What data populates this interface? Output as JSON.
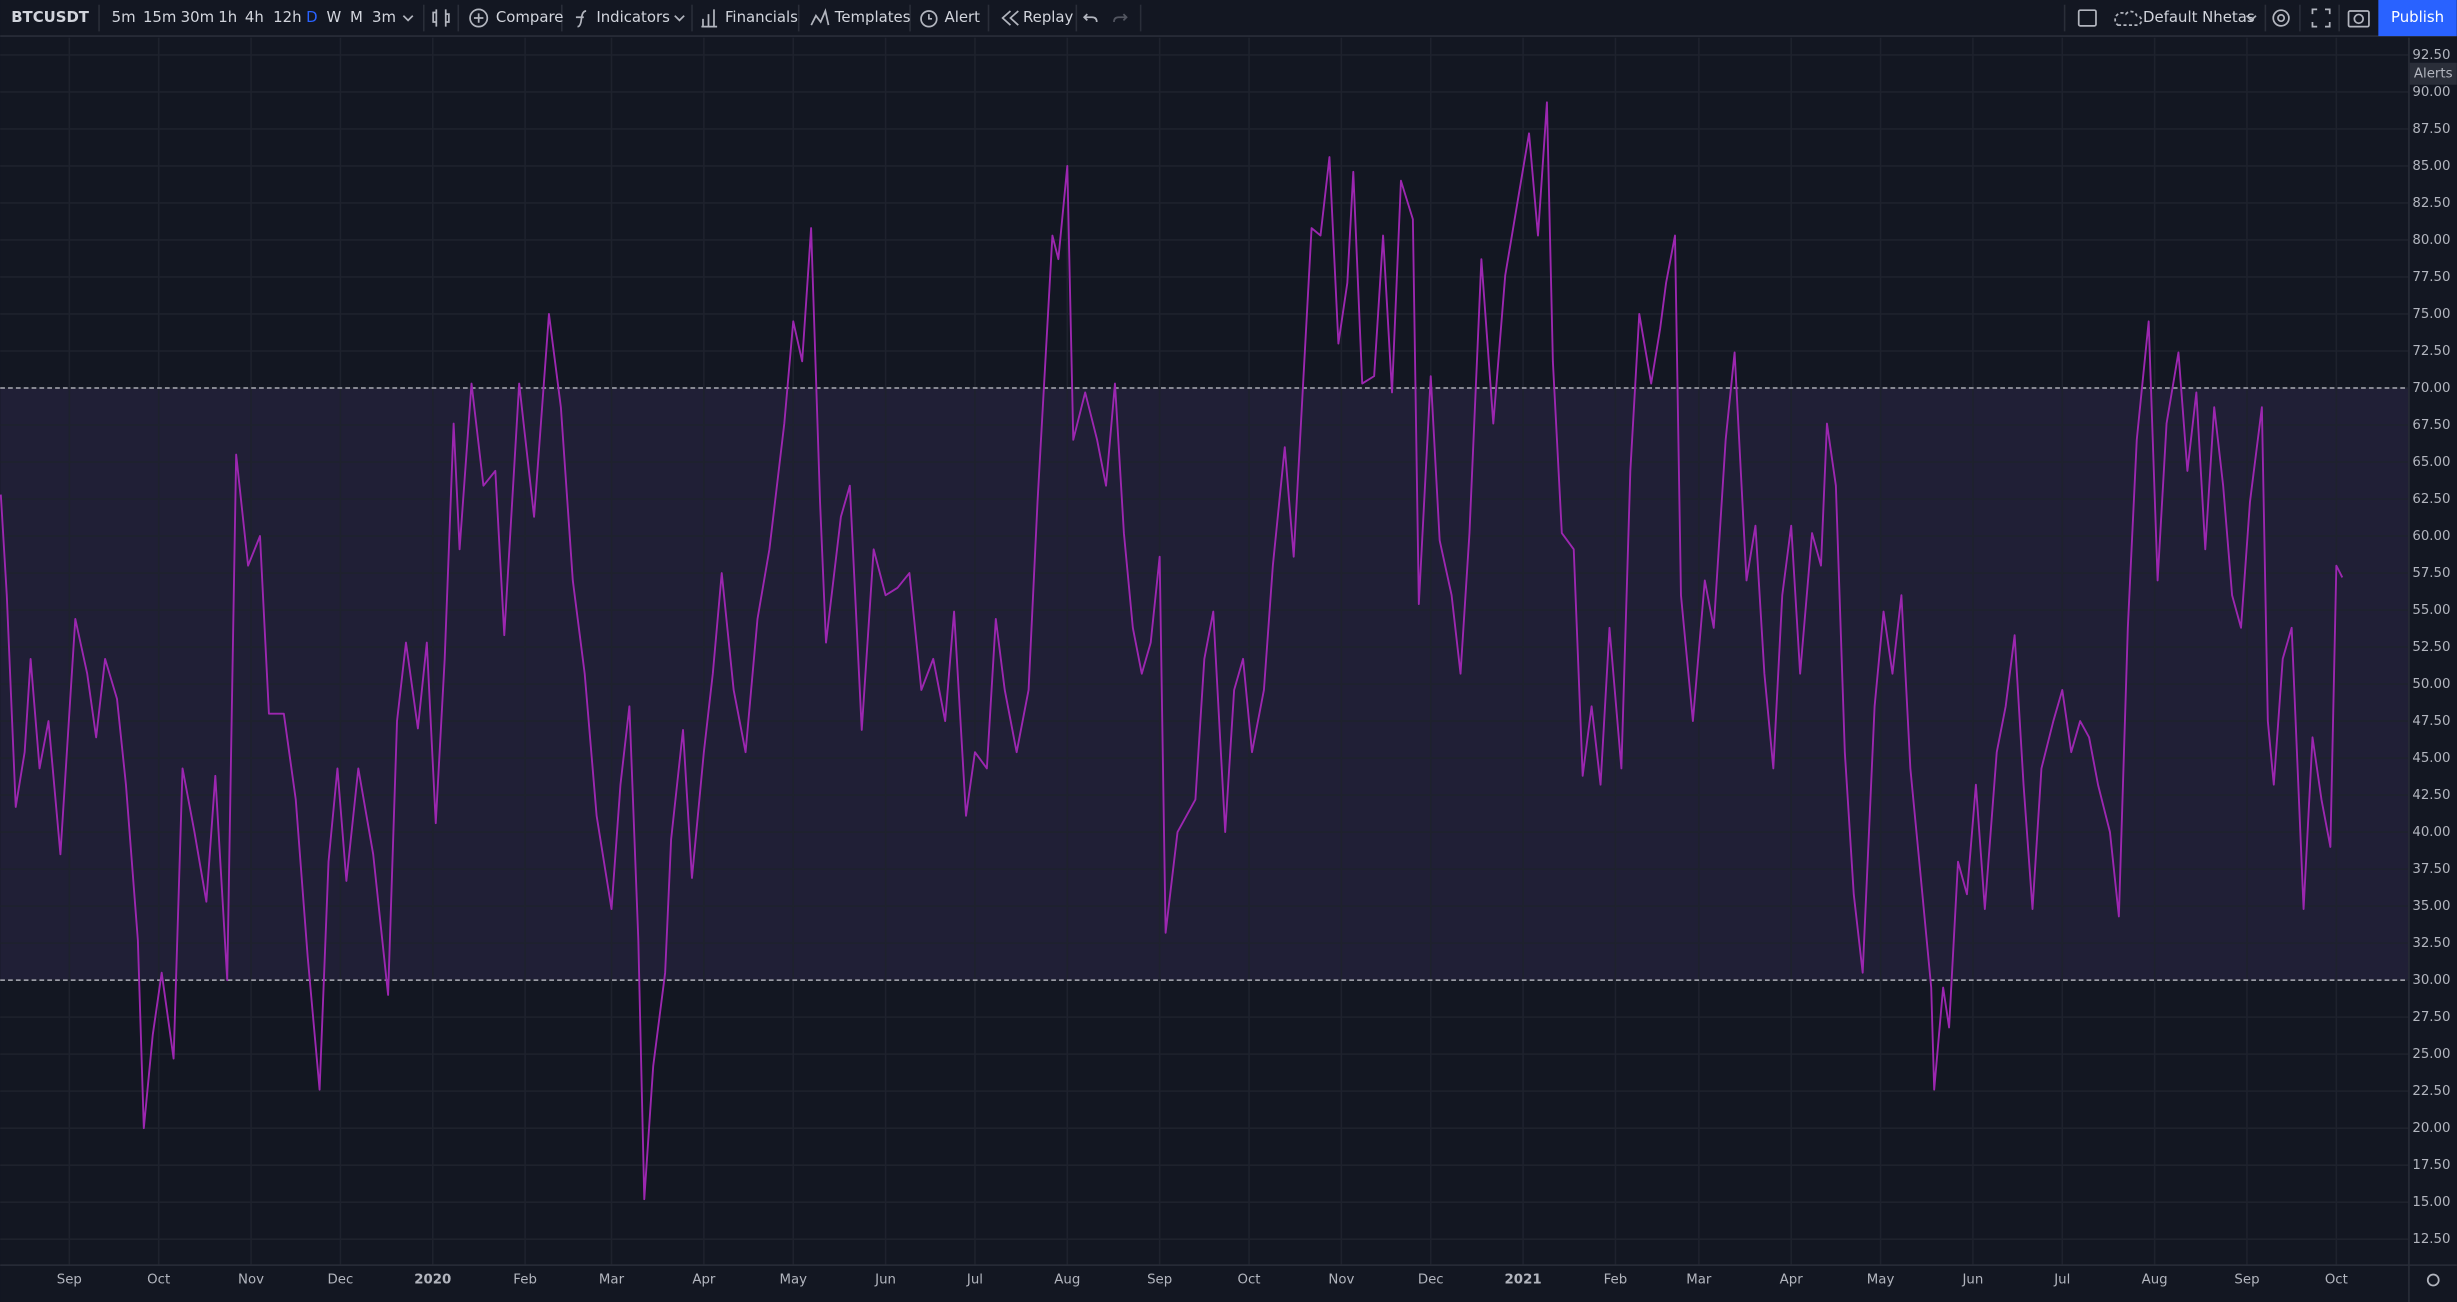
{
  "toolbar": {
    "symbol": "BTCUSDT",
    "intervals": [
      "5m",
      "15m",
      "30m",
      "1h",
      "4h",
      "12h",
      "D",
      "W",
      "M",
      "3m"
    ],
    "active_interval": 6,
    "buttons": [
      "Compare",
      "Indicators",
      "Financials",
      "Templates",
      "Alert",
      "Replay"
    ],
    "layout_name": "Default Nhetas",
    "publish": "Publish"
  },
  "chart_data": {
    "type": "line",
    "axis_tag": "Alerts",
    "color": "#9c27b0",
    "band_color": "#7e57c2",
    "hlines": [
      70,
      30
    ],
    "grid": true,
    "x": [
      -23,
      -21,
      -18,
      -15,
      -13,
      -10,
      -7,
      -3,
      2,
      6,
      9,
      12,
      16,
      19,
      23,
      25,
      28,
      31,
      35,
      38,
      42,
      46,
      49,
      53,
      56,
      60,
      64,
      67,
      72,
      76,
      80,
      84,
      87,
      90,
      93,
      97,
      102,
      107,
      110,
      113,
      117,
      120,
      123,
      126,
      129,
      131,
      135,
      139,
      143,
      146,
      151,
      156,
      161,
      165,
      169,
      173,
      177,
      182,
      185,
      188,
      191,
      193,
      196,
      200,
      202,
      206,
      209,
      213,
      216,
      219,
      223,
      227,
      231,
      235,
      240,
      243,
      246,
      249,
      252,
      254,
      259,
      262,
      266,
      270,
      274,
      278,
      282,
      286,
      290,
      294,
      297,
      301,
      304,
      308,
      311,
      314,
      318,
      322,
      325,
      330,
      332,
      335,
      337,
      341,
      345,
      348,
      351,
      354,
      357,
      360,
      363,
      366,
      368,
      372,
      375,
      378,
      381,
      384,
      388,
      391,
      394,
      397,
      401,
      404,
      408,
      411,
      414,
      417,
      420,
      423,
      426,
      429,
      431,
      434,
      438,
      441,
      444,
      447,
      451,
      453,
      457,
      460,
      464,
      467,
      470,
      474,
      478,
      482,
      486,
      490,
      493,
      496,
      498,
      501,
      505,
      508,
      511,
      514,
      517,
      521,
      524,
      527,
      531,
      534,
      536,
      539,
      541,
      545,
      549,
      552,
      556,
      559,
      563,
      566,
      569,
      572,
      575,
      578,
      581,
      585,
      588,
      590,
      593,
      596,
      599,
      602,
      606,
      609,
      612,
      615,
      618,
      621,
      625,
      626,
      629,
      631,
      634,
      637,
      640,
      643,
      647,
      650,
      653,
      656,
      659,
      662,
      666,
      669,
      672,
      675,
      678,
      681,
      685,
      688,
      691,
      694,
      698,
      701,
      704,
      708,
      711,
      714,
      717,
      720,
      723,
      726,
      729,
      732,
      736,
      738,
      740,
      743,
      746,
      750,
      753,
      756,
      759,
      761,
      763
    ],
    "values": [
      62.8,
      56,
      41.7,
      45.4,
      51.7,
      44.3,
      47.5,
      38.5,
      54.4,
      50.7,
      46.4,
      51.7,
      49,
      43.2,
      32.7,
      20,
      26.3,
      30.5,
      24.7,
      44.3,
      40,
      35.3,
      43.8,
      30,
      65.5,
      58,
      60,
      48,
      48,
      42.2,
      31.6,
      22.6,
      38,
      44.3,
      36.7,
      44.3,
      38.5,
      29,
      47.5,
      52.8,
      47,
      52.8,
      40.6,
      51.7,
      67.6,
      59.1,
      70.3,
      63.4,
      64.4,
      53.3,
      70.3,
      61.3,
      75,
      68.7,
      57,
      50.7,
      41.1,
      34.8,
      43.2,
      48.5,
      32.7,
      15.2,
      24.2,
      30.5,
      39.5,
      46.9,
      36.9,
      45.4,
      50.7,
      57.5,
      49.6,
      45.4,
      54.4,
      59.1,
      67.6,
      74.5,
      71.8,
      80.8,
      62.3,
      52.8,
      61.3,
      63.4,
      46.9,
      59.1,
      56,
      56.5,
      57.5,
      49.6,
      51.7,
      47.5,
      54.9,
      41.1,
      45.4,
      44.3,
      54.4,
      49.6,
      45.4,
      49.6,
      62.3,
      80.3,
      78.7,
      85,
      66.5,
      69.7,
      66.5,
      63.4,
      70.3,
      60.2,
      53.8,
      50.7,
      52.8,
      58.6,
      33.2,
      40,
      41.1,
      42.2,
      51.7,
      54.9,
      40,
      49.6,
      51.7,
      45.4,
      49.6,
      58,
      66,
      58.6,
      69.7,
      80.8,
      80.3,
      85.6,
      73,
      77.1,
      84.6,
      70.3,
      70.8,
      80.3,
      69.7,
      84,
      81.4,
      55.4,
      70.8,
      59.7,
      56,
      50.7,
      60.2,
      78.7,
      67.6,
      77.6,
      82.4,
      87.2,
      80.3,
      89.3,
      71.8,
      60.2,
      59.1,
      43.8,
      48.5,
      43.2,
      53.8,
      44.3,
      64.4,
      75,
      70.3,
      74,
      77.1,
      80.3,
      56,
      47.5,
      57,
      53.8,
      66.5,
      72.4,
      57,
      60.7,
      50.7,
      44.3,
      56,
      60.7,
      50.7,
      60.2,
      58,
      67.6,
      63.4,
      45.4,
      35.8,
      30.5,
      48.5,
      54.9,
      50.7,
      56,
      44.3,
      38,
      29.5,
      22.6,
      29.5,
      26.8,
      38,
      35.8,
      43.2,
      34.8,
      45.4,
      48.5,
      53.3,
      43.2,
      34.8,
      44.3,
      47.5,
      49.6,
      45.4,
      47.5,
      46.4,
      43.2,
      40,
      34.3,
      53.8,
      66.5,
      74.5,
      57,
      67.6,
      72.4,
      64.4,
      69.7,
      59.1,
      68.7,
      63.4,
      56,
      53.8,
      62.3,
      68.7,
      47.5,
      43.2,
      51.7,
      53.8,
      34.8,
      46.4,
      42.2,
      39,
      58,
      57.2
    ],
    "xlim": [
      -23.2,
      785.1
    ],
    "xticks": [
      {
        "value": 0,
        "label": "Sep"
      },
      {
        "value": 30,
        "label": "Oct"
      },
      {
        "value": 61,
        "label": "Nov"
      },
      {
        "value": 91,
        "label": "Dec"
      },
      {
        "value": 122,
        "label": "2020"
      },
      {
        "value": 153,
        "label": "Feb"
      },
      {
        "value": 182,
        "label": "Mar"
      },
      {
        "value": 213,
        "label": "Apr"
      },
      {
        "value": 243,
        "label": "May"
      },
      {
        "value": 274,
        "label": "Jun"
      },
      {
        "value": 304,
        "label": "Jul"
      },
      {
        "value": 335,
        "label": "Aug"
      },
      {
        "value": 366,
        "label": "Sep"
      },
      {
        "value": 396,
        "label": "Oct"
      },
      {
        "value": 427,
        "label": "Nov"
      },
      {
        "value": 457,
        "label": "Dec"
      },
      {
        "value": 488,
        "label": "2021"
      },
      {
        "value": 519,
        "label": "Feb"
      },
      {
        "value": 547,
        "label": "Mar"
      },
      {
        "value": 578,
        "label": "Apr"
      },
      {
        "value": 608,
        "label": "May"
      },
      {
        "value": 639,
        "label": "Jun"
      },
      {
        "value": 669,
        "label": "Jul"
      },
      {
        "value": 700,
        "label": "Aug"
      },
      {
        "value": 731,
        "label": "Sep"
      },
      {
        "value": 761,
        "label": "Oct"
      }
    ],
    "ylim": [
      10.8,
      93.56
    ],
    "yticks": [
      {
        "value": 12.5,
        "label": "12.50"
      },
      {
        "value": 15,
        "label": "15.00"
      },
      {
        "value": 17.5,
        "label": "17.50"
      },
      {
        "value": 20,
        "label": "20.00"
      },
      {
        "value": 22.5,
        "label": "22.50"
      },
      {
        "value": 25,
        "label": "25.00"
      },
      {
        "value": 27.5,
        "label": "27.50"
      },
      {
        "value": 30,
        "label": "30.00"
      },
      {
        "value": 32.5,
        "label": "32.50"
      },
      {
        "value": 35,
        "label": "35.00"
      },
      {
        "value": 37.5,
        "label": "37.50"
      },
      {
        "value": 40,
        "label": "40.00"
      },
      {
        "value": 42.5,
        "label": "42.50"
      },
      {
        "value": 45,
        "label": "45.00"
      },
      {
        "value": 47.5,
        "label": "47.50"
      },
      {
        "value": 50,
        "label": "50.00"
      },
      {
        "value": 52.5,
        "label": "52.50"
      },
      {
        "value": 55,
        "label": "55.00"
      },
      {
        "value": 57.5,
        "label": "57.50"
      },
      {
        "value": 60,
        "label": "60.00"
      },
      {
        "value": 62.5,
        "label": "62.50"
      },
      {
        "value": 65,
        "label": "65.00"
      },
      {
        "value": 67.5,
        "label": "67.50"
      },
      {
        "value": 70,
        "label": "70.00"
      },
      {
        "value": 72.5,
        "label": "72.50"
      },
      {
        "value": 75,
        "label": "75.00"
      },
      {
        "value": 77.5,
        "label": "77.50"
      },
      {
        "value": 80,
        "label": "80.00"
      },
      {
        "value": 82.5,
        "label": "82.50"
      },
      {
        "value": 85,
        "label": "85.00"
      },
      {
        "value": 87.5,
        "label": "87.50"
      },
      {
        "value": 90,
        "label": "90.00"
      },
      {
        "value": 92.5,
        "label": "92.50"
      }
    ]
  }
}
